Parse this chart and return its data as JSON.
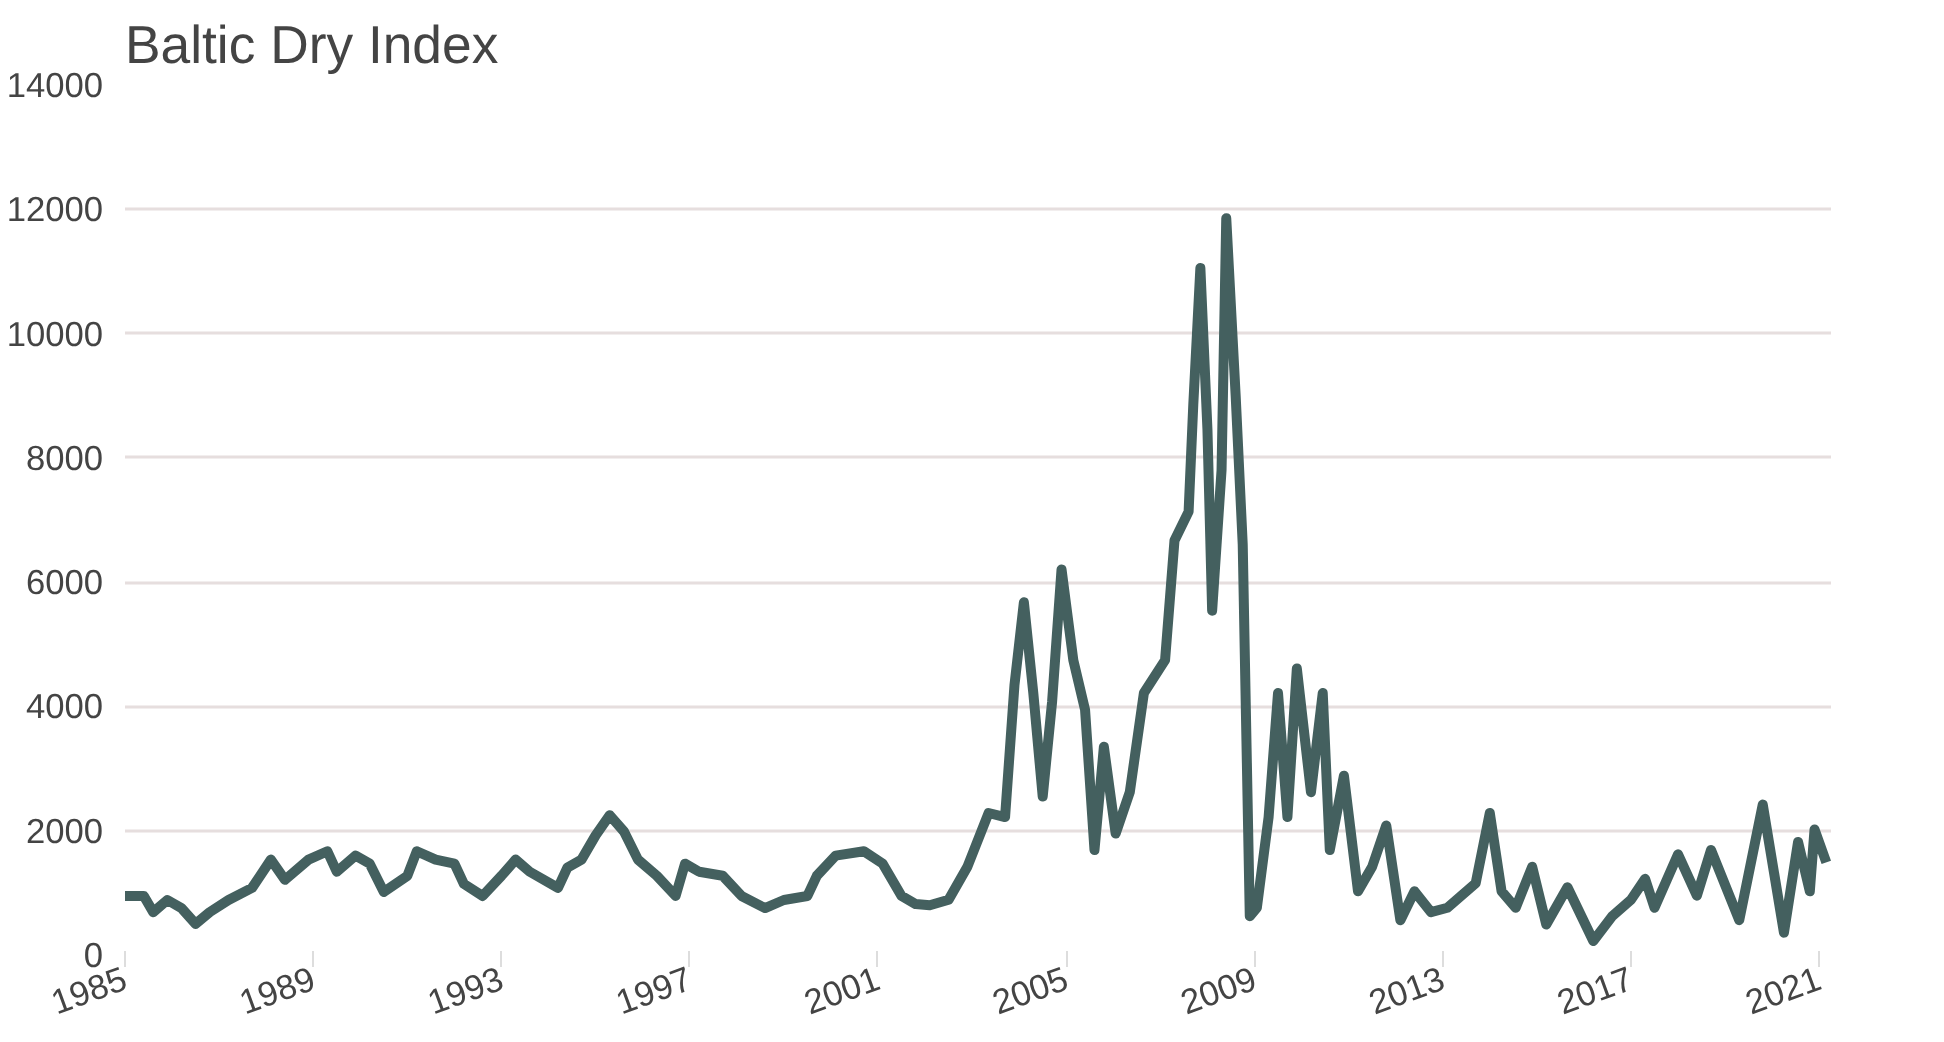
{
  "chart_data": {
    "type": "line",
    "title": "Baltic Dry Index",
    "x": [
      1985.0,
      1985.4,
      1985.6,
      1985.9,
      1986.2,
      1986.5,
      1986.8,
      1987.2,
      1987.7,
      1988.1,
      1988.4,
      1988.9,
      1989.3,
      1989.5,
      1989.9,
      1990.2,
      1990.5,
      1991.0,
      1991.2,
      1991.6,
      1992.0,
      1992.2,
      1992.6,
      1993.0,
      1993.3,
      1993.6,
      1994.2,
      1994.4,
      1994.7,
      1995.0,
      1995.3,
      1995.6,
      1995.9,
      1996.3,
      1996.7,
      1996.9,
      1997.2,
      1997.7,
      1998.1,
      1998.6,
      1999.0,
      1999.5,
      1999.7,
      2000.1,
      2000.7,
      2001.1,
      2001.5,
      2001.8,
      2002.1,
      2002.5,
      2002.9,
      2003.35,
      2003.7,
      2003.9,
      2004.1,
      2004.3,
      2004.5,
      2004.7,
      2004.9,
      2005.15,
      2005.4,
      2005.6,
      2005.8,
      2006.05,
      2006.35,
      2006.65,
      2007.1,
      2007.3,
      2007.6,
      2007.7,
      2007.85,
      2008.0,
      2008.1,
      2008.3,
      2008.4,
      2008.6,
      2008.75,
      2008.9,
      2009.05,
      2009.3,
      2009.5,
      2009.7,
      2009.9,
      2010.2,
      2010.45,
      2010.6,
      2010.9,
      2011.2,
      2011.5,
      2011.8,
      2012.1,
      2012.4,
      2012.75,
      2013.1,
      2013.7,
      2014.0,
      2014.25,
      2014.55,
      2014.9,
      2015.2,
      2015.65,
      2016.2,
      2016.6,
      2017.0,
      2017.3,
      2017.5,
      2018.0,
      2018.4,
      2018.7,
      2019.3,
      2019.8,
      2020.25,
      2020.55,
      2020.8,
      2020.9,
      2021.15
    ],
    "series": [
      {
        "color": "#44605f",
        "values": [
          950,
          950,
          690,
          885,
          755,
          500,
          690,
          885,
          1080,
          1535,
          1210,
          1535,
          1670,
          1340,
          1600,
          1470,
          1015,
          1275,
          1670,
          1535,
          1470,
          1145,
          950,
          1275,
          1535,
          1340,
          1080,
          1405,
          1535,
          1925,
          2250,
          1990,
          1535,
          1275,
          950,
          1470,
          1340,
          1275,
          950,
          755,
          885,
          950,
          1275,
          1600,
          1670,
          1470,
          950,
          820,
          800,
          890,
          1420,
          2285,
          2220,
          4345,
          5675,
          4215,
          2550,
          4080,
          6205,
          4745,
          3945,
          1690,
          3350,
          1955,
          2620,
          4215,
          4745,
          6670,
          7135,
          8865,
          11055,
          8465,
          5540,
          7800,
          11855,
          9000,
          6605,
          625,
          760,
          2220,
          4215,
          2220,
          4610,
          2620,
          4215,
          1690,
          2885,
          1025,
          1420,
          2085,
          560,
          1025,
          690,
          760,
          1155,
          2285,
          1025,
          760,
          1420,
          490,
          1090,
          225,
          625,
          890,
          1225,
          760,
          1620,
          955,
          1690,
          560,
          2420,
          360,
          1820,
          1025,
          2020,
          1490
        ]
      }
    ],
    "xlim": [
      1985,
      2021.25
    ],
    "xticks": [
      1985,
      1989,
      1993,
      1997,
      2001,
      2005,
      2009,
      2013,
      2017,
      2021
    ],
    "ylim": [
      0,
      14000
    ],
    "yticks": [
      0,
      2000,
      4000,
      6000,
      8000,
      10000,
      12000,
      14000
    ],
    "grid": "y"
  }
}
